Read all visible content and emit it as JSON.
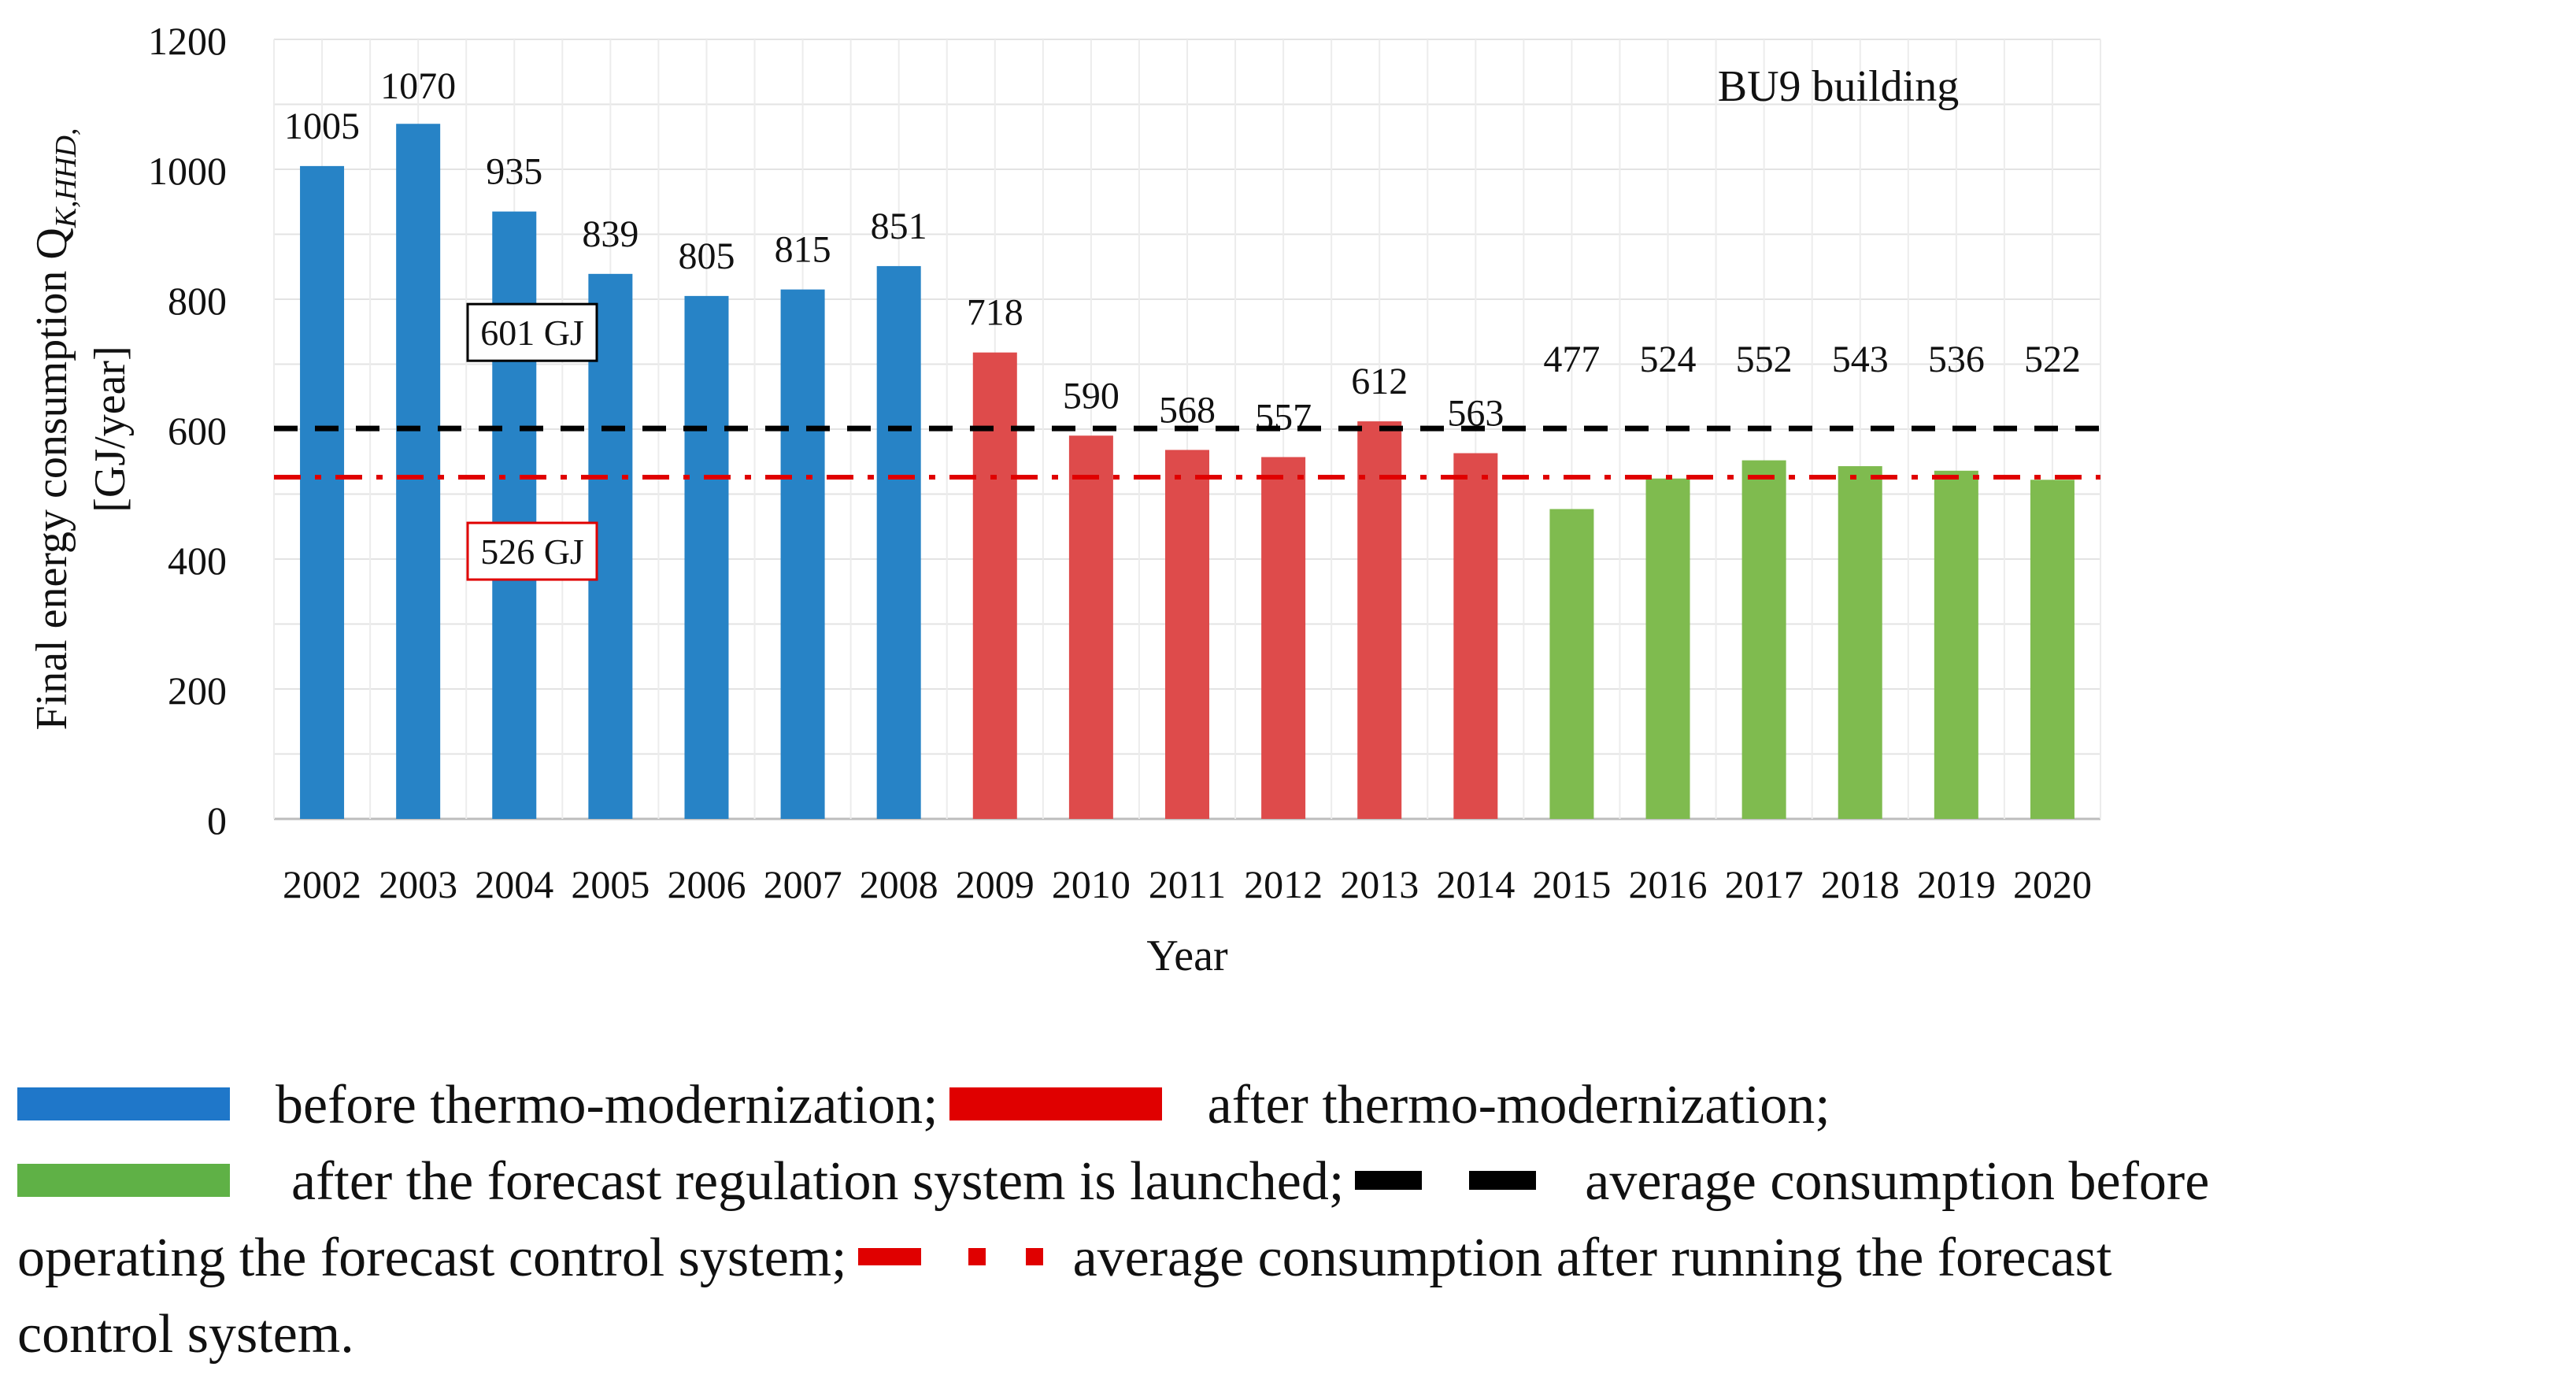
{
  "chart_data": {
    "type": "bar",
    "annotation": "BU9 building",
    "xlabel": "Year",
    "ylabel_line1": "Final energy consumption Q",
    "ylabel_subscript": "K,HHD,",
    "ylabel_line2": "[GJ/year]",
    "ylim": [
      0,
      1200
    ],
    "yticks": [
      0,
      200,
      400,
      600,
      800,
      1000,
      1200
    ],
    "grid": true,
    "categories": [
      "2002",
      "2003",
      "2004",
      "2005",
      "2006",
      "2007",
      "2008",
      "2009",
      "2010",
      "2011",
      "2012",
      "2013",
      "2014",
      "2015",
      "2016",
      "2017",
      "2018",
      "2019",
      "2020"
    ],
    "values": [
      1005,
      1070,
      935,
      839,
      805,
      815,
      851,
      718,
      590,
      568,
      557,
      612,
      563,
      477,
      524,
      552,
      543,
      536,
      522
    ],
    "groups": [
      "before",
      "before",
      "before",
      "before",
      "before",
      "before",
      "before",
      "after",
      "after",
      "after",
      "after",
      "after",
      "after",
      "forecast",
      "forecast",
      "forecast",
      "forecast",
      "forecast",
      "forecast"
    ],
    "group_colors": {
      "before": "#2783c6",
      "after": "#de4b4b",
      "forecast": "#7fbb4f"
    },
    "reference_lines": [
      {
        "value": 601,
        "label": "601 GJ",
        "style": "dashed",
        "color": "#000000"
      },
      {
        "value": 526,
        "label": "526 GJ",
        "style": "dash-dot",
        "color": "#e00000"
      }
    ]
  },
  "legend": {
    "before": "before thermo-modernization;",
    "after": "after thermo-modernization;",
    "forecast": "after the forecast regulation system is launched;",
    "avg_before_1": "average consumption before",
    "avg_before_2": "operating the forecast control system;",
    "avg_after_1": "average consumption after running the forecast",
    "avg_after_2": "control system."
  }
}
